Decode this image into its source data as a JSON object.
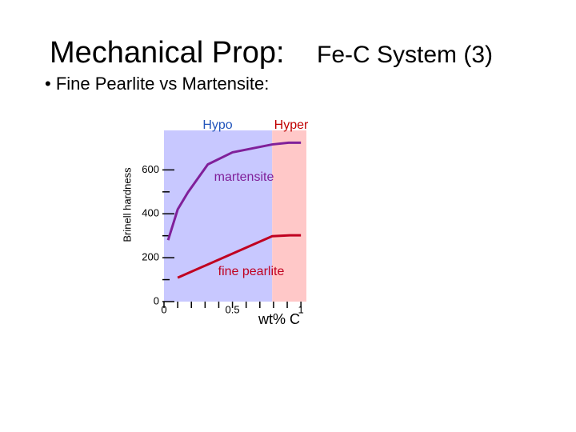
{
  "chart_data": {
    "type": "line",
    "title": "Mechanical Prop:",
    "title_suffix": "Fe-C System (3)",
    "subtitle": "• Fine Pearlite vs Martensite:",
    "ylabel": "Brinell hardness",
    "xlabel": "wt% C",
    "xlim": [
      0,
      1.04
    ],
    "ylim": [
      0,
      780
    ],
    "xticks": [
      0,
      0.5,
      1
    ],
    "xminor": [
      0.1,
      0.2,
      0.3,
      0.4,
      0.6,
      0.7,
      0.8,
      0.9
    ],
    "yticks": [
      0,
      200,
      400,
      600
    ],
    "yminor": [
      100,
      300,
      500
    ],
    "regions": [
      {
        "name": "Hypo",
        "range": [
          0,
          0.79
        ],
        "color": "#c8c8ff",
        "text_color": "#2255bb"
      },
      {
        "name": "Hyper",
        "range": [
          0.79,
          1.04
        ],
        "color": "#ffc8c8",
        "text_color": "#c00000"
      }
    ],
    "series": [
      {
        "name": "martensite",
        "color": "#80209a",
        "x": [
          0.03,
          0.1,
          0.175,
          0.32,
          0.5,
          0.79,
          0.91,
          1.0
        ],
        "values": [
          280,
          420,
          498,
          625,
          680,
          716,
          724,
          724
        ]
      },
      {
        "name": "fine pearlite",
        "color": "#c00020",
        "x": [
          0.1,
          0.79,
          0.92,
          1.0
        ],
        "values": [
          109,
          298,
          302,
          302
        ]
      }
    ]
  }
}
